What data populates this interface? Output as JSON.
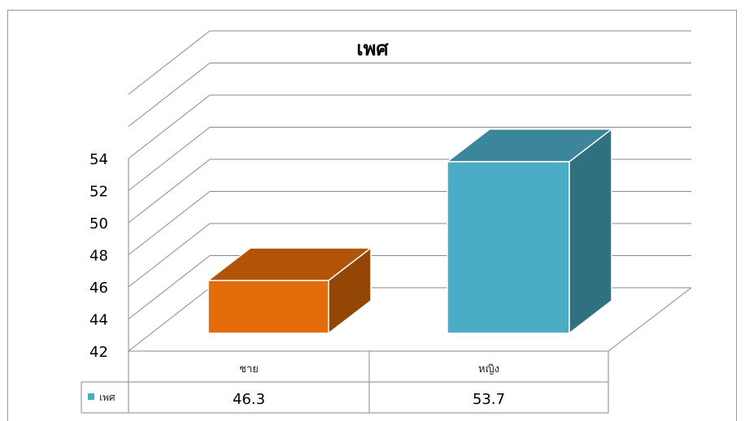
{
  "chart_data": {
    "type": "bar",
    "title": "เพศ",
    "categories": [
      "ชาย",
      "หญิง"
    ],
    "series": [
      {
        "name": "เพศ",
        "values": [
          46.3,
          53.7
        ],
        "colors": [
          "#e46c0a",
          "#4bacc6"
        ]
      }
    ],
    "yticks": [
      "42",
      "44",
      "46",
      "48",
      "50",
      "52",
      "54"
    ],
    "ylim": [
      42,
      54
    ],
    "grid": true,
    "legend": "data-table-left",
    "data_table": true,
    "value_labels": [
      "46.3",
      "53.7"
    ],
    "legend_color": "#4bacc6"
  }
}
